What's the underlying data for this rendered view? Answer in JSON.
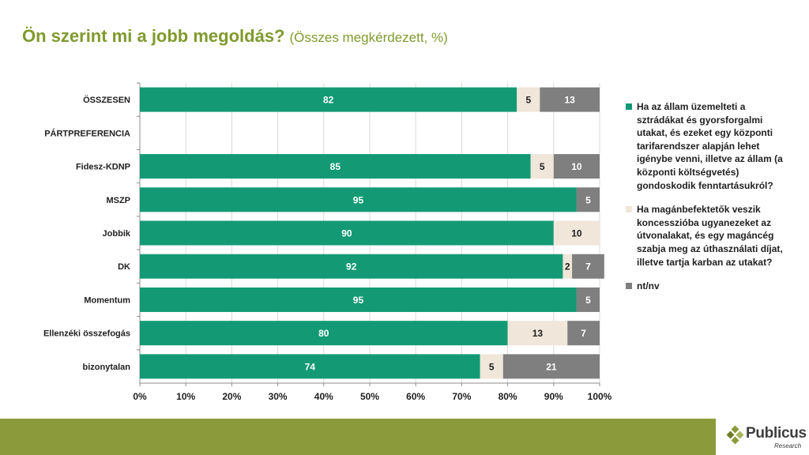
{
  "title": {
    "main": "Ön szerint mi a jobb megoldás?",
    "sub": "(Összes megkérdezett, %)"
  },
  "chart_data": {
    "type": "bar",
    "orientation": "horizontal",
    "stacked": true,
    "percent": true,
    "categories": [
      "ÖSSZESEN",
      "PÁRTPREFERENCIA",
      "Fidesz-KDNP",
      "MSZP",
      "Jobbik",
      "DK",
      "Momentum",
      "Ellenzéki összefogás",
      "bizonytalan"
    ],
    "series": [
      {
        "name": "Ha az állam üzemelteti a sztrádákat és gyorsforgalmi utakat, és ezeket egy központi tarifarendszer alapján lehet igénybe venni, illetve az állam (a központi költségvetés) gondoskodik fenntartásukról?",
        "color": "#139a74",
        "label_color": "#ffffff",
        "values": [
          82,
          null,
          85,
          95,
          90,
          92,
          95,
          80,
          74
        ]
      },
      {
        "name": "Ha magánbefektetők veszik koncesszióba ugyanezeket az útvonalakat, és egy magáncég szabja meg az úthasználati díjat, illetve tartja karban az utakat?",
        "color": "#f0e6da",
        "label_color": "#1f1f1f",
        "values": [
          5,
          null,
          5,
          0,
          10,
          2,
          0,
          13,
          5
        ]
      },
      {
        "name": "nt/nv",
        "color": "#7f7f7f",
        "label_color": "#ffffff",
        "values": [
          13,
          null,
          10,
          5,
          0,
          7,
          5,
          7,
          21
        ]
      }
    ],
    "xlim": [
      0,
      100
    ],
    "x_ticks": [
      "0%",
      "10%",
      "20%",
      "30%",
      "40%",
      "50%",
      "60%",
      "70%",
      "80%",
      "90%",
      "100%"
    ],
    "grid": true,
    "legend_position": "right"
  },
  "logo": {
    "name": "Publicus",
    "sub": "Research"
  }
}
